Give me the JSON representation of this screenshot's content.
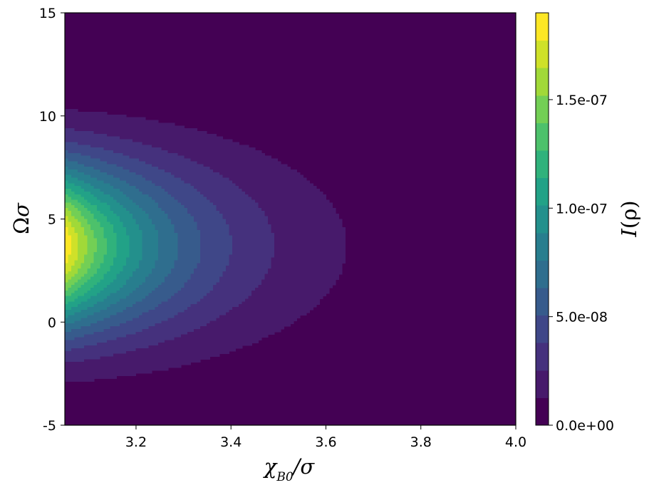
{
  "chart_data": {
    "type": "heatmap",
    "subtype": "filled-contour",
    "title": "",
    "xlabel_parts": [
      {
        "text": "χ",
        "role": "base"
      },
      {
        "text": "B0",
        "role": "sub"
      },
      {
        "text": "/σ",
        "role": "base"
      }
    ],
    "ylabel_parts": [
      {
        "text": "Ω",
        "role": "base"
      },
      {
        "text": "σ",
        "role": "base"
      }
    ],
    "colorbar_label_parts": [
      {
        "text": "I",
        "role": "base"
      },
      {
        "text": "(ρ)",
        "role": "base"
      }
    ],
    "xlim": [
      3.05,
      4.0
    ],
    "ylim": [
      -5,
      15
    ],
    "xticks": [
      3.2,
      3.4,
      3.6,
      3.8,
      4.0
    ],
    "xtick_labels": [
      "3.2",
      "3.4",
      "3.6",
      "3.8",
      "4.0"
    ],
    "yticks": [
      -5,
      0,
      5,
      10,
      15
    ],
    "ytick_labels": [
      "-5",
      "0",
      "5",
      "10",
      "15"
    ],
    "colorbar": {
      "range": [
        0,
        1.9e-07
      ],
      "levels": 15,
      "ticks": [
        0,
        5e-08,
        1e-07,
        1.5e-07
      ],
      "tick_labels": [
        "0.0e+00",
        "5.0e-08",
        "1.0e-07",
        "1.5e-07"
      ],
      "colormap": "viridis"
    },
    "model": {
      "description": "peak intensity at left edge, decaying with x, Gaussian in y",
      "peak_value": 1.88e-07,
      "peak_center_y": 3.7,
      "x_decay_min_x": 3.05,
      "x_decay_lambda": 4.55,
      "y_width_at_min_x": 2.85,
      "y_width_growth": 1.7
    },
    "grid": false
  }
}
